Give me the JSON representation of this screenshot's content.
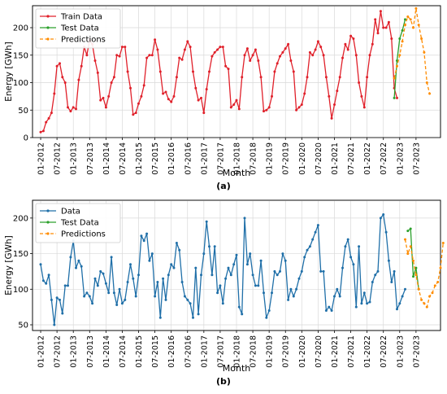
{
  "chart_data": [
    {
      "type": "line",
      "panel_label": "(a)",
      "xlabel": "Month",
      "ylabel": "Energy [GWh]",
      "ylim": [
        0,
        240
      ],
      "yticks": [
        0,
        50,
        100,
        150,
        200
      ],
      "xticks": [
        "01-2012",
        "07-2012",
        "01-2013",
        "07-2013",
        "01-2014",
        "07-2014",
        "01-2015",
        "07-2015",
        "01-2016",
        "07-2016",
        "01-2017",
        "07-2017",
        "01-2018",
        "07-2018",
        "01-2019",
        "07-2019",
        "01-2020",
        "07-2020",
        "01-2021",
        "07-2021",
        "01-2022",
        "07-2022",
        "01-2023",
        "07-2023"
      ],
      "xtick_start": 0,
      "xtick_step": 6,
      "xmin": -3,
      "xmax": 147,
      "grid": true,
      "legend_position": "top-left",
      "series": [
        {
          "name": "Train Data",
          "color": "#e0202a",
          "style": "solid",
          "start": 0,
          "values": [
            10,
            12,
            28,
            35,
            45,
            80,
            130,
            135,
            110,
            100,
            55,
            48,
            55,
            52,
            105,
            130,
            165,
            150,
            178,
            170,
            140,
            118,
            68,
            72,
            55,
            75,
            100,
            110,
            150,
            148,
            165,
            165,
            120,
            90,
            42,
            45,
            62,
            75,
            95,
            145,
            150,
            150,
            178,
            160,
            120,
            80,
            83,
            70,
            65,
            75,
            110,
            145,
            142,
            160,
            175,
            165,
            120,
            90,
            68,
            72,
            45,
            88,
            120,
            148,
            155,
            160,
            165,
            165,
            130,
            125,
            55,
            60,
            68,
            52,
            110,
            150,
            162,
            140,
            150,
            160,
            140,
            110,
            48,
            50,
            55,
            75,
            120,
            135,
            148,
            155,
            162,
            170,
            140,
            120,
            50,
            55,
            60,
            80,
            110,
            155,
            150,
            160,
            175,
            165,
            150,
            110,
            75,
            35,
            60,
            85,
            110,
            145,
            170,
            160,
            185,
            180,
            150,
            100,
            75,
            55,
            110,
            150,
            170,
            215,
            190,
            230,
            200,
            200,
            210,
            180,
            90,
            72
          ]
        },
        {
          "name": "Test Data",
          "color": "#2ca02c",
          "style": "solid",
          "start": 130,
          "values": [
            72,
            140,
            180,
            195,
            215
          ]
        },
        {
          "name": "Predictions",
          "color": "#ff8c00",
          "style": "dashed",
          "start": 130,
          "values": [
            108,
            130,
            150,
            175,
            205,
            220,
            215,
            200,
            235,
            205,
            180,
            155,
            100,
            80
          ]
        }
      ]
    },
    {
      "type": "line",
      "panel_label": "(b)",
      "xlabel": "Month",
      "ylabel": "Energy [GWh]",
      "ylim": [
        42,
        225
      ],
      "yticks": [
        50,
        100,
        150,
        200
      ],
      "xticks": [
        "01-2012",
        "07-2012",
        "01-2013",
        "07-2013",
        "01-2014",
        "07-2014",
        "01-2015",
        "07-2015",
        "01-2016",
        "07-2016",
        "01-2017",
        "07-2017",
        "01-2018",
        "07-2018",
        "01-2019",
        "07-2019",
        "01-2020",
        "07-2020",
        "01-2021",
        "07-2021",
        "01-2022",
        "07-2022",
        "01-2023",
        "07-2023"
      ],
      "xtick_start": 0,
      "xtick_step": 6,
      "xmin": -3,
      "xmax": 147,
      "grid": true,
      "legend_position": "top-left",
      "series": [
        {
          "name": "Data",
          "color": "#1f6fa8",
          "style": "solid",
          "start": 0,
          "values": [
            135,
            112,
            108,
            120,
            85,
            50,
            88,
            85,
            66,
            105,
            105,
            145,
            168,
            130,
            140,
            132,
            90,
            95,
            90,
            80,
            115,
            105,
            125,
            122,
            108,
            95,
            145,
            95,
            78,
            100,
            80,
            85,
            110,
            135,
            115,
            90,
            120,
            175,
            168,
            178,
            140,
            150,
            90,
            110,
            60,
            115,
            85,
            120,
            135,
            130,
            165,
            155,
            110,
            90,
            85,
            80,
            60,
            130,
            65,
            120,
            150,
            195,
            160,
            120,
            160,
            95,
            105,
            80,
            115,
            130,
            120,
            135,
            148,
            75,
            65,
            200,
            135,
            150,
            120,
            105,
            105,
            140,
            95,
            60,
            70,
            95,
            125,
            120,
            125,
            150,
            140,
            85,
            100,
            90,
            100,
            115,
            125,
            145,
            155,
            160,
            170,
            180,
            190,
            125,
            125,
            70,
            75,
            70,
            90,
            100,
            90,
            130,
            160,
            170,
            145,
            135,
            75,
            160,
            80,
            95,
            80,
            82,
            110,
            120,
            125,
            200,
            205,
            180,
            140,
            110,
            125,
            72,
            80,
            90,
            100
          ]
        },
        {
          "name": "Test Data",
          "color": "#2ca02c",
          "style": "solid",
          "start": 135,
          "values": [
            182,
            185,
            118,
            130,
            100
          ]
        },
        {
          "name": "Predictions",
          "color": "#ff8c00",
          "style": "dashed",
          "start": 134,
          "values": [
            170,
            150,
            160,
            140,
            120,
            100,
            85,
            80,
            75,
            90,
            95,
            105,
            110,
            130,
            165
          ]
        }
      ]
    }
  ]
}
